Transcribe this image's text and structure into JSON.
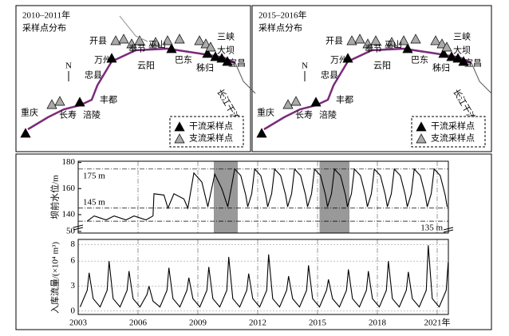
{
  "maps": [
    {
      "title": [
        "2010–2011年",
        "采样点分布"
      ],
      "north": "N",
      "legend": [
        "干流采样点",
        "支流采样点"
      ],
      "places": [
        "开县",
        "万州",
        "忠县",
        "奉节",
        "巫山",
        "云阳",
        "巴东",
        "三峡",
        "大坝",
        "秭归",
        "宜昌",
        "长江干流",
        "重庆",
        "长寿",
        "涪陵",
        "丰都"
      ]
    },
    {
      "title": [
        "2015–2016年",
        "采样点分布"
      ],
      "north": "N",
      "legend": [
        "干流采样点",
        "支流采样点"
      ],
      "places": [
        "开县",
        "万州",
        "忠县",
        "奉节",
        "巫山",
        "云阳",
        "巴东",
        "三峡",
        "大坝",
        "秭归",
        "宜昌",
        "长江干流",
        "重庆",
        "长寿",
        "涪陵",
        "丰都"
      ]
    }
  ],
  "chart_data": [
    {
      "type": "line",
      "ylabel": "坝前水位/m",
      "color": "#000000",
      "xlim": [
        2003,
        2021.56
      ],
      "ylim": [
        132,
        181
      ],
      "yticks": [
        140,
        160,
        180
      ],
      "break_ylim": [
        49,
        53
      ],
      "break_yticks": [
        50
      ],
      "reference_lines": [
        {
          "value": 175,
          "label": "175 m"
        },
        {
          "value": 145,
          "label": "145 m"
        },
        {
          "value": 135,
          "label": "135 m"
        }
      ],
      "shaded": [
        [
          2009.8,
          2011.0
        ],
        [
          2015.1,
          2016.6
        ]
      ],
      "x": [
        2003.45,
        2003.8,
        2004.4,
        2004.8,
        2005.4,
        2005.8,
        2006.4,
        2006.75,
        2006.8,
        2007.3,
        2007.5,
        2007.8,
        2008.3,
        2008.5,
        2008.8,
        2009.2,
        2009.5,
        2009.85,
        2010.2,
        2010.5,
        2010.85,
        2011.15,
        2011.4,
        2011.5,
        2011.7,
        2011.85,
        2012.15,
        2012.4,
        2012.5,
        2012.7,
        2012.85,
        2013.15,
        2013.4,
        2013.5,
        2013.7,
        2013.85,
        2014.15,
        2014.4,
        2014.5,
        2014.7,
        2014.85,
        2015.15,
        2015.4,
        2015.5,
        2015.7,
        2015.85,
        2016.15,
        2016.4,
        2016.5,
        2016.7,
        2016.85,
        2017.15,
        2017.4,
        2017.5,
        2017.7,
        2017.85,
        2018.15,
        2018.4,
        2018.5,
        2018.7,
        2018.85,
        2019.15,
        2019.4,
        2019.5,
        2019.7,
        2019.85,
        2020.15,
        2020.4,
        2020.5,
        2020.7,
        2020.85,
        2021.15,
        2021.4,
        2021.5
      ],
      "values": [
        135,
        139,
        136,
        139,
        136,
        139,
        136,
        139,
        156,
        155,
        145,
        156,
        152,
        145,
        172,
        165,
        146,
        171,
        160,
        146,
        175,
        170,
        155,
        146,
        156,
        175,
        170,
        155,
        146,
        156,
        175,
        170,
        155,
        146,
        156,
        175,
        170,
        155,
        146,
        156,
        175,
        170,
        155,
        146,
        156,
        175,
        170,
        155,
        146,
        156,
        175,
        170,
        155,
        146,
        156,
        175,
        170,
        155,
        146,
        156,
        175,
        170,
        155,
        146,
        156,
        175,
        170,
        155,
        146,
        156,
        175,
        170,
        155,
        146
      ]
    },
    {
      "type": "line",
      "ylabel": "入库流量/(×10⁴ m³)",
      "color": "#000000",
      "xlim": [
        2003,
        2021.56
      ],
      "ylim": [
        -0.4,
        8.6
      ],
      "yticks": [
        0,
        3,
        6,
        8
      ],
      "xticks": [
        2003,
        2006,
        2009,
        2012,
        2015,
        2018,
        {
          "value": 2021,
          "label": "2021年"
        }
      ],
      "x": [
        2003.1,
        2003.45,
        2003.55,
        2003.75,
        2004.1,
        2004.45,
        2004.55,
        2004.75,
        2005.1,
        2005.45,
        2005.55,
        2005.75,
        2006.1,
        2006.45,
        2006.55,
        2006.75,
        2007.1,
        2007.45,
        2007.55,
        2007.75,
        2008.1,
        2008.45,
        2008.55,
        2008.75,
        2009.1,
        2009.45,
        2009.55,
        2009.75,
        2010.1,
        2010.45,
        2010.55,
        2010.75,
        2011.1,
        2011.45,
        2011.55,
        2011.75,
        2012.1,
        2012.45,
        2012.55,
        2012.75,
        2013.1,
        2013.45,
        2013.55,
        2013.75,
        2014.1,
        2014.45,
        2014.55,
        2014.75,
        2015.1,
        2015.45,
        2015.55,
        2015.75,
        2016.1,
        2016.45,
        2016.55,
        2016.75,
        2017.1,
        2017.45,
        2017.55,
        2017.75,
        2018.1,
        2018.45,
        2018.55,
        2018.75,
        2019.1,
        2019.45,
        2019.55,
        2019.75,
        2020.1,
        2020.45,
        2020.55,
        2020.75,
        2021.1,
        2021.45,
        2021.55
      ],
      "values": [
        0.5,
        2.5,
        4.6,
        1.5,
        0.5,
        2.5,
        6.0,
        1.5,
        0.5,
        2.5,
        4.8,
        1.5,
        0.5,
        2.0,
        3.0,
        1.2,
        0.5,
        2.5,
        5.2,
        1.5,
        0.5,
        2.5,
        4.0,
        1.5,
        0.5,
        2.5,
        5.3,
        1.5,
        0.5,
        2.5,
        6.5,
        1.5,
        0.5,
        2.5,
        4.5,
        1.5,
        0.5,
        2.5,
        6.8,
        1.5,
        0.5,
        2.5,
        4.2,
        1.5,
        0.5,
        2.5,
        5.5,
        1.5,
        0.5,
        2.5,
        3.8,
        1.5,
        0.5,
        2.5,
        5.0,
        1.5,
        0.5,
        2.5,
        4.8,
        1.5,
        0.5,
        2.5,
        6.0,
        1.5,
        0.5,
        2.5,
        4.7,
        1.5,
        0.5,
        2.5,
        7.9,
        1.5,
        0.5,
        2.5,
        5.9
      ]
    }
  ]
}
